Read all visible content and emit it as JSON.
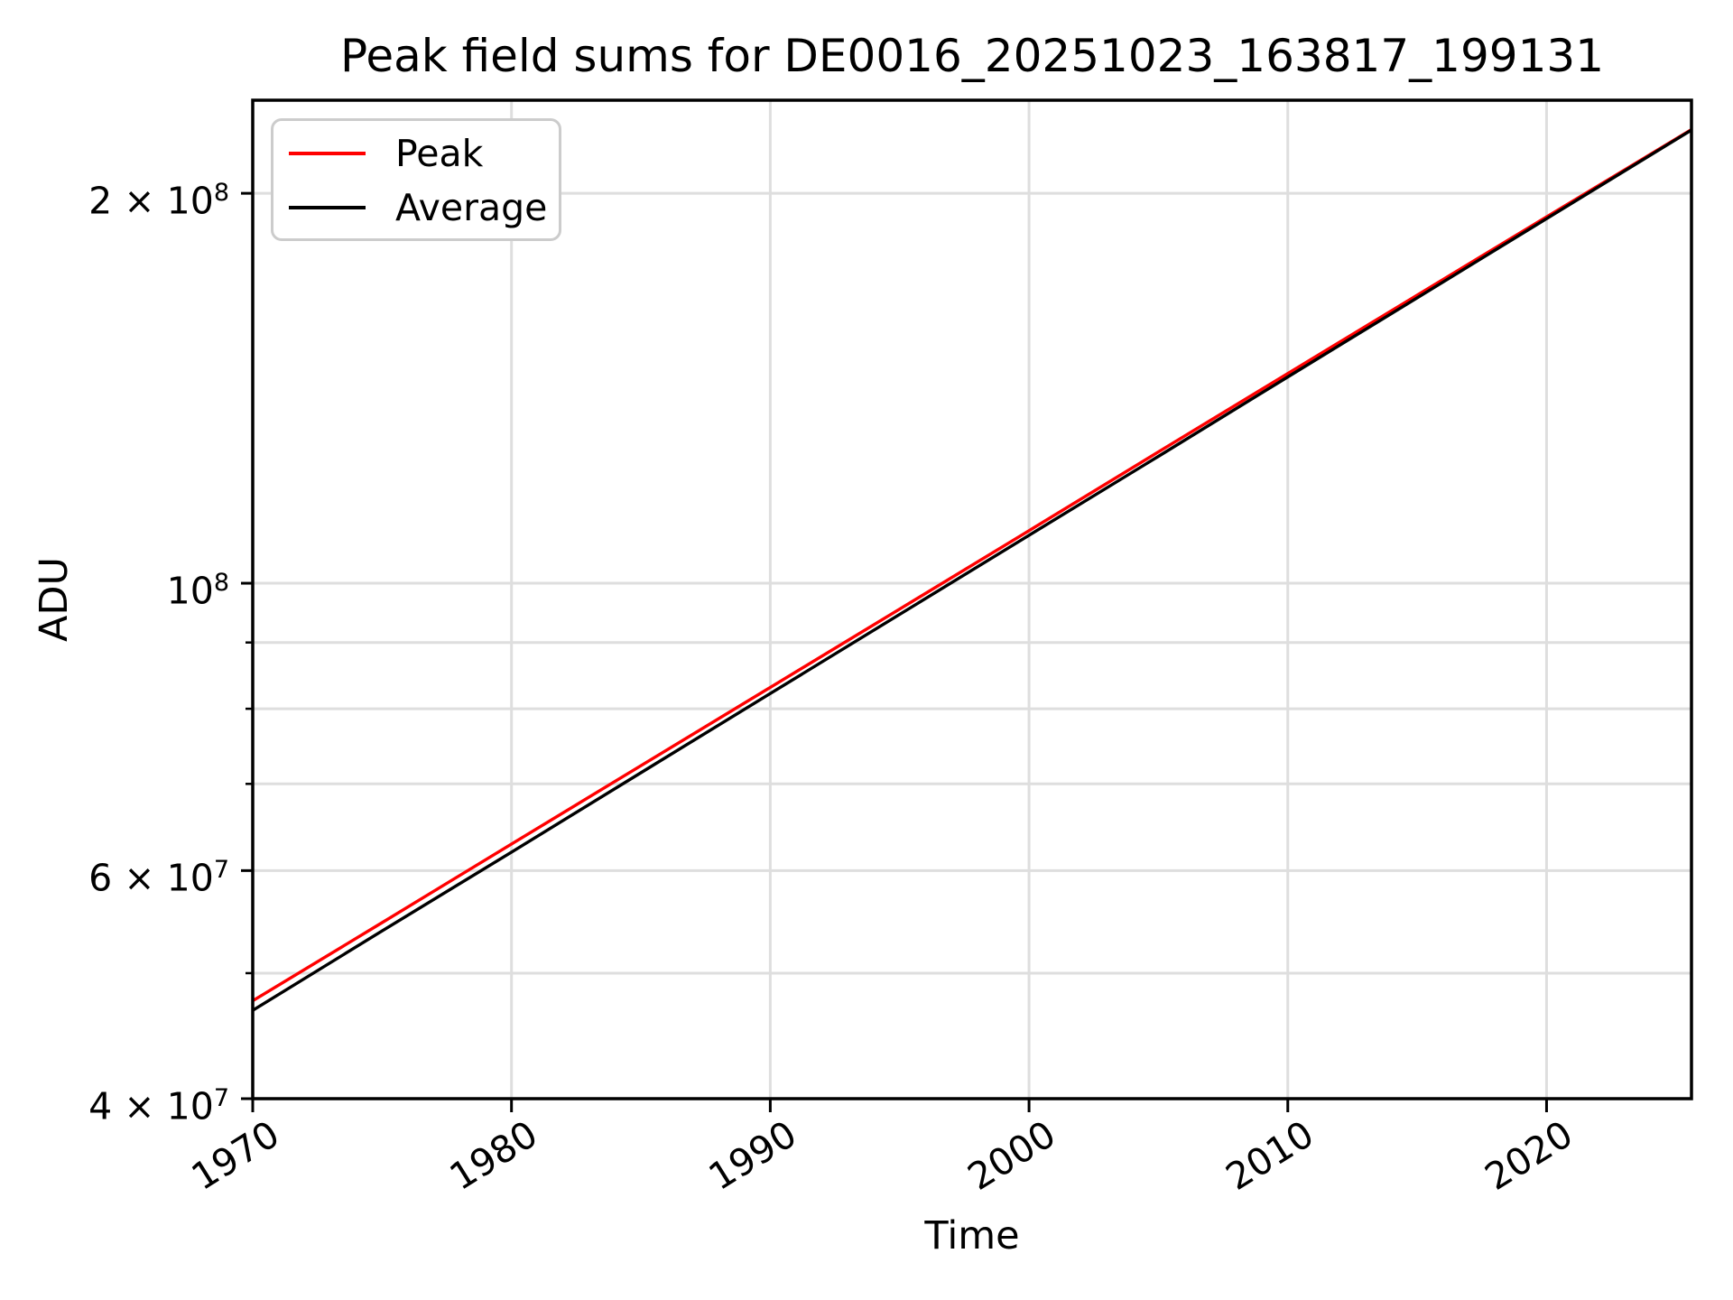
{
  "colors": {
    "background": "#ffffff",
    "axis": "#000000",
    "grid": "#dedede",
    "legend_border": "#cccccc",
    "peak_line": "#ff0000",
    "average_line": "#000000"
  },
  "chart_data": {
    "type": "line",
    "title": "Peak field sums for DE0016_20251023_163817_199131",
    "xlabel": "Time",
    "ylabel": "ADU",
    "x_scale": "linear",
    "y_scale": "log",
    "grid": true,
    "xlim": [
      1970,
      2025.6
    ],
    "ylim": [
      40000000,
      236000000
    ],
    "x": [
      1970,
      1975,
      1980,
      1985,
      1990,
      1995,
      2000,
      2005,
      2010,
      2015,
      2020,
      2025.6
    ],
    "series": [
      {
        "name": "Peak",
        "color": "#ff0000",
        "values": [
          47600000,
          54700000,
          62900000,
          72300000,
          83100000,
          95500000,
          109800000,
          126300000,
          145200000,
          166900000,
          191800000,
          224000000
        ]
      },
      {
        "name": "Average",
        "color": "#000000",
        "values": [
          46800000,
          53900000,
          62000000,
          71400000,
          82200000,
          94600000,
          108900000,
          125300000,
          144300000,
          166100000,
          191200000,
          223800000
        ]
      }
    ],
    "x_ticks": [
      {
        "value": 1970,
        "label": "1970"
      },
      {
        "value": 1980,
        "label": "1980"
      },
      {
        "value": 1990,
        "label": "1990"
      },
      {
        "value": 2000,
        "label": "2000"
      },
      {
        "value": 2010,
        "label": "2010"
      },
      {
        "value": 2020,
        "label": "2020"
      }
    ],
    "y_ticks": [
      {
        "value": 200000000,
        "mantissa": "2 × 10",
        "exp": "8"
      },
      {
        "value": 100000000,
        "mantissa": "10",
        "exp": "8"
      },
      {
        "value": 60000000,
        "mantissa": "6 × 10",
        "exp": "7"
      },
      {
        "value": 40000000,
        "mantissa": "4 × 10",
        "exp": "7"
      }
    ],
    "y_minor_ticks": [
      50000000,
      70000000,
      80000000,
      90000000
    ],
    "legend": {
      "position": "upper left",
      "entries": [
        {
          "label": "Peak",
          "color": "#ff0000"
        },
        {
          "label": "Average",
          "color": "#000000"
        }
      ]
    }
  }
}
